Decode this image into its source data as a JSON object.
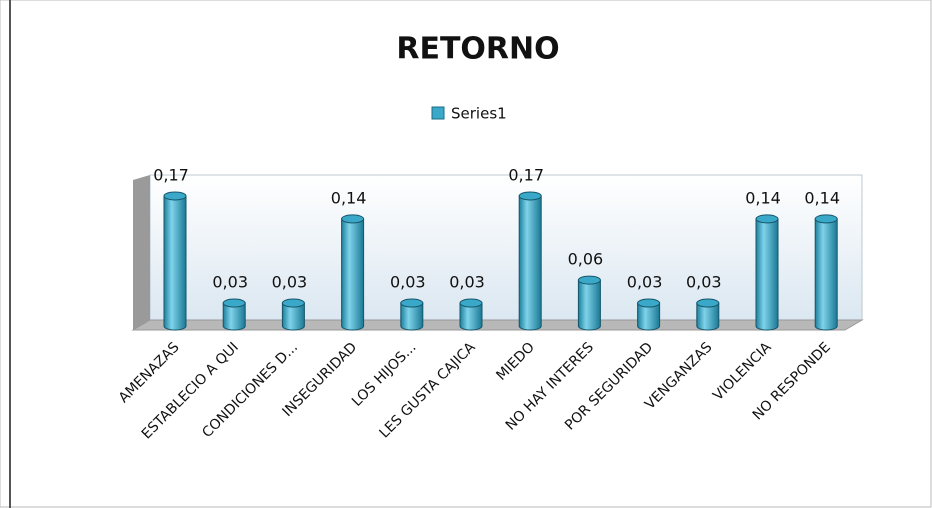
{
  "chart_data": {
    "type": "bar",
    "title": "RETORNO",
    "categories": [
      "AMENAZAS",
      "ESTABLECIO A QUI",
      "CONDICIONES D...",
      "INSEGURIDAD",
      "LOS HIJOS...",
      "LES GUSTA CAJICA",
      "MIEDO",
      "NO HAY INTERES",
      "POR SEGURIDAD",
      "VENGANZAS",
      "VIOLENCIA",
      "NO RESPONDE"
    ],
    "series": [
      {
        "name": "Series1",
        "color": "#3aa8c8",
        "values": [
          0.17,
          0.03,
          0.03,
          0.14,
          0.03,
          0.03,
          0.17,
          0.06,
          0.03,
          0.03,
          0.14,
          0.14
        ],
        "value_labels": [
          "0,17",
          "0,03",
          "0,03",
          "0,14",
          "0,03",
          "0,03",
          "0,17",
          "0,06",
          "0,03",
          "0,03",
          "0,14",
          "0,14"
        ]
      }
    ],
    "legend": "top"
  }
}
